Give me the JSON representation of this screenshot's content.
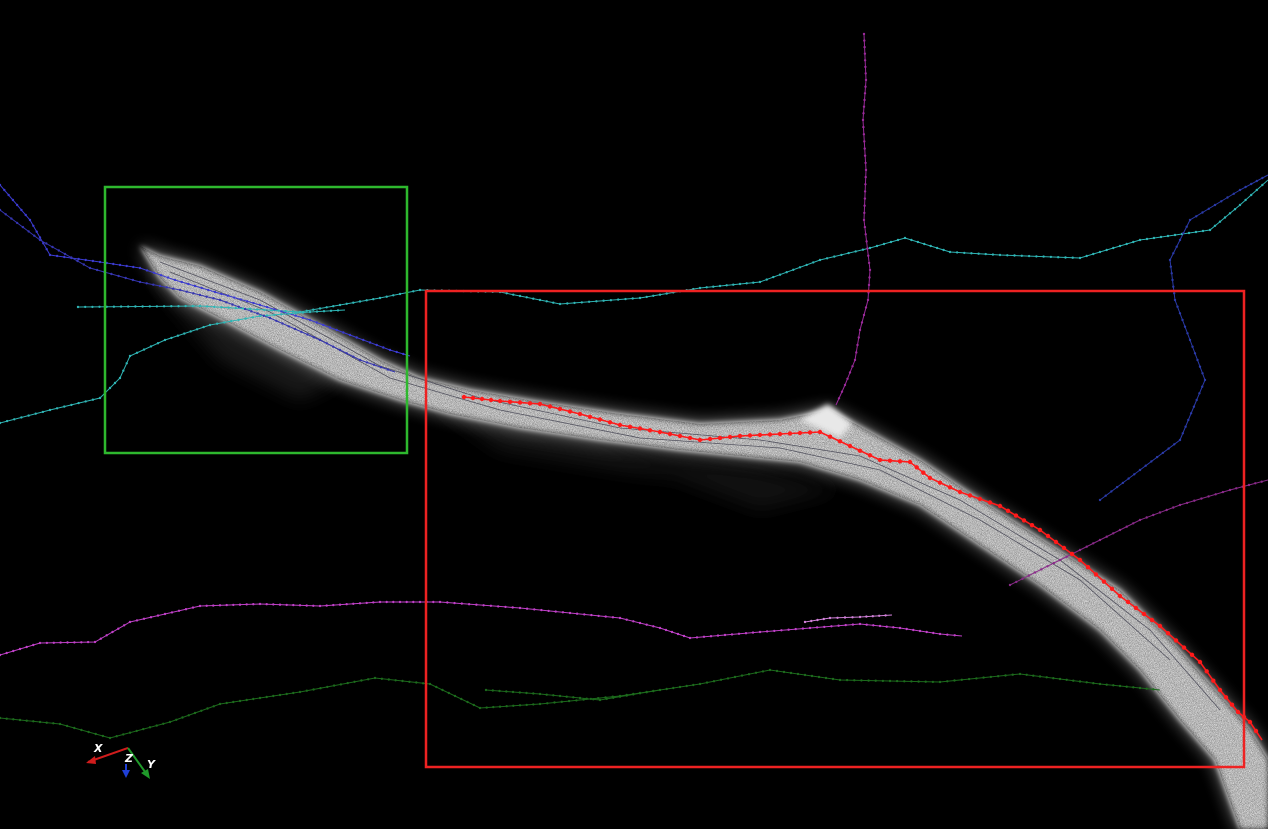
{
  "viewer": {
    "background": "#000000",
    "axes": {
      "x_label": "X",
      "y_label": "Y",
      "z_label": "Z",
      "x_color": "#d01c1c",
      "y_color": "#1f9a2a",
      "z_color": "#1f3fd6"
    },
    "regions": [
      {
        "name": "green-roi-box",
        "color": "#2eb82e"
      },
      {
        "name": "red-roi-box",
        "color": "#ee2222"
      }
    ],
    "traces": [
      {
        "name": "highlighted-trace",
        "color": "#ff1a1a"
      },
      {
        "name": "dark-blue-trace",
        "color": "#3b3bd0"
      },
      {
        "name": "cyan-trace-upper",
        "color": "#2fb5b5"
      },
      {
        "name": "cyan-trace-left",
        "color": "#2fb5b5"
      },
      {
        "name": "magenta-trace-lower",
        "color": "#c040c8"
      },
      {
        "name": "purple-trace-vertical",
        "color": "#9a2a9a"
      },
      {
        "name": "purple-trace-right",
        "color": "#8a2a8a"
      },
      {
        "name": "blue-trace-right",
        "color": "#2a3aa8"
      },
      {
        "name": "green-trace-bottom",
        "color": "#1c6a1c"
      }
    ]
  }
}
